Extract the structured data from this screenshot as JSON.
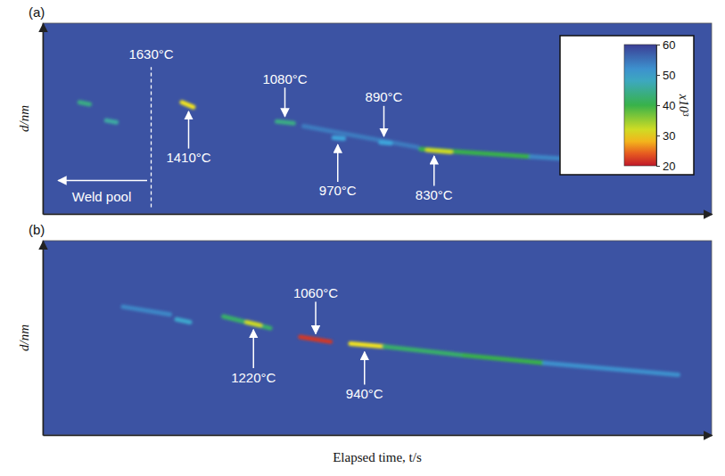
{
  "chart_data": [
    {
      "type": "heatmap",
      "panel": "(a)",
      "y_label": "d/nm",
      "xlim": [
        0,
        100
      ],
      "ylim": [
        0,
        100
      ],
      "tick_labels": false,
      "background": 58,
      "streaks": [
        {
          "x0": 5.5,
          "y0": 58.5,
          "x1": 7,
          "y1": 57.5,
          "value": 44
        },
        {
          "x0": 9.5,
          "y0": 49,
          "x1": 11,
          "y1": 48,
          "value": 46
        },
        {
          "x0": 20.8,
          "y0": 58.5,
          "x1": 22.5,
          "y1": 56,
          "value": 30
        },
        {
          "x0": 35,
          "y0": 48.5,
          "x1": 37.5,
          "y1": 47.5,
          "value": 44
        },
        {
          "x0": 39,
          "y0": 46,
          "x1": 56,
          "y1": 35,
          "value": 54
        },
        {
          "x0": 43.5,
          "y0": 40,
          "x1": 45,
          "y1": 39.5,
          "value": 50
        },
        {
          "x0": 50.5,
          "y0": 37.5,
          "x1": 52,
          "y1": 37,
          "value": 50
        },
        {
          "x0": 56.5,
          "y0": 34,
          "x1": 73,
          "y1": 30,
          "value": 40
        },
        {
          "x0": 57.5,
          "y0": 33.5,
          "x1": 61,
          "y1": 32.5,
          "value": 32
        },
        {
          "x0": 73,
          "y0": 30,
          "x1": 80,
          "y1": 28.5,
          "value": 53
        }
      ],
      "annotations": [
        {
          "text": "1410°C",
          "x": 21.8,
          "y": 57,
          "label_y": 29.6
        },
        {
          "text": "1080°C",
          "x": 36.2,
          "y": 47.8,
          "label_y": 70.9
        },
        {
          "text": "970°C",
          "x": 44.1,
          "y": 39.6,
          "label_y": 12.2
        },
        {
          "text": "890°C",
          "x": 51,
          "y": 37.4,
          "label_y": 61.3
        },
        {
          "text": "830°C",
          "x": 58.5,
          "y": 33.6,
          "label_y": 10
        }
      ],
      "vline": {
        "x": 16.2,
        "y0": 3.5,
        "y1": 77,
        "label": "1630°C",
        "label_y": 84
      },
      "region": {
        "text": "Weld pool",
        "x": 8.8,
        "y": 9,
        "arrow_x0": 15.6,
        "arrow_x1": 2.3,
        "arrow_y": 17.5
      },
      "colorbar": {
        "range": [
          20,
          60
        ],
        "ticks": [
          20,
          30,
          40,
          50,
          60
        ],
        "label": "x10³"
      }
    },
    {
      "type": "heatmap",
      "panel": "(b)",
      "y_label": "d/nm",
      "x_label": "Elapsed time, t/s",
      "xlim": [
        0,
        100
      ],
      "ylim": [
        0,
        100
      ],
      "tick_labels": false,
      "background": 58,
      "streaks": [
        {
          "x0": 12,
          "y0": 66,
          "x1": 19,
          "y1": 62,
          "value": 53
        },
        {
          "x0": 20,
          "y0": 59.5,
          "x1": 22,
          "y1": 58,
          "value": 49
        },
        {
          "x0": 27,
          "y0": 61,
          "x1": 34,
          "y1": 55,
          "value": 42
        },
        {
          "x0": 30.5,
          "y0": 58,
          "x1": 32.5,
          "y1": 56.5,
          "value": 32
        },
        {
          "x0": 38.5,
          "y0": 50.5,
          "x1": 43,
          "y1": 48,
          "value": 22
        },
        {
          "x0": 46,
          "y0": 47,
          "x1": 51,
          "y1": 45.5,
          "value": 30
        },
        {
          "x0": 51,
          "y0": 45.5,
          "x1": 63,
          "y1": 41,
          "value": 42
        },
        {
          "x0": 63,
          "y0": 41,
          "x1": 75,
          "y1": 37,
          "value": 40
        },
        {
          "x0": 75,
          "y0": 37,
          "x1": 95,
          "y1": 31,
          "value": 52
        }
      ],
      "annotations": [
        {
          "text": "1220°C",
          "x": 31.5,
          "y": 57.4,
          "label_y": 29.8
        },
        {
          "text": "1060°C",
          "x": 40.8,
          "y": 48.9,
          "label_y": 73.2
        },
        {
          "text": "940°C",
          "x": 48.1,
          "y": 46,
          "label_y": 21.3
        }
      ]
    }
  ]
}
